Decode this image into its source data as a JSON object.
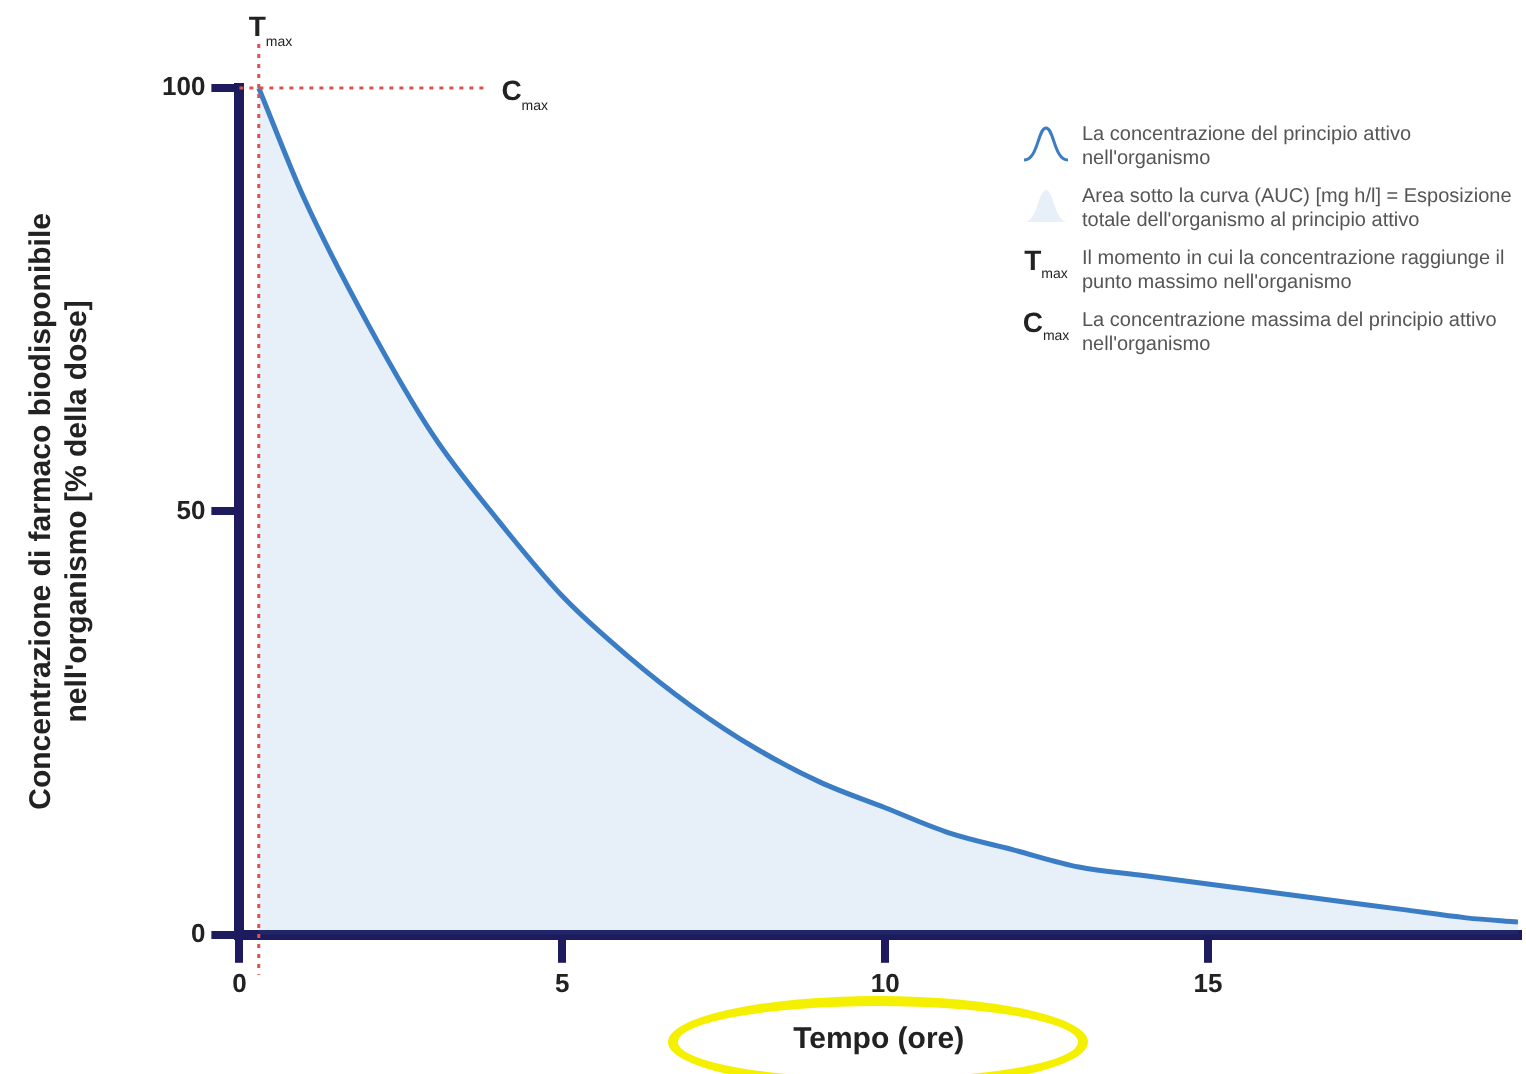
{
  "chart_data": {
    "type": "area",
    "xlabel": "Tempo (ore)",
    "ylabel": "Concentrazione di farmaco biodisponibile nell'organismo [% della dose]",
    "x": [
      0.3,
      1,
      2,
      3,
      4,
      5,
      6,
      7,
      8,
      9,
      10,
      11,
      12,
      13,
      14,
      15,
      16,
      17,
      18,
      19,
      19.8
    ],
    "series": [
      {
        "name": "La concentrazione del principio attivo nell'organismo",
        "color": "#3b7dc4",
        "values": [
          100,
          87,
          72,
          59,
          49,
          40,
          33,
          27,
          22,
          18,
          15,
          12,
          10,
          8,
          7,
          6,
          5,
          4,
          3,
          2,
          1.5
        ]
      }
    ],
    "xlim": [
      0,
      19.8
    ],
    "xticks": [
      0,
      5,
      10,
      15
    ],
    "ylim": [
      0,
      100
    ],
    "yticks": [
      0,
      50,
      100
    ],
    "grid": false,
    "legend": "top right",
    "marker": "none",
    "line_style": "solid",
    "ref_lines": [
      {
        "axis": "x",
        "value": 0.3,
        "label": "T$_{max}$",
        "color": "#d9534f",
        "line_style": "dotted"
      },
      {
        "axis": "y",
        "value": 100,
        "label": "C$_{max}$",
        "color": "#d9534f",
        "line_style": "dotted"
      }
    ],
    "annotations": [
      "Area sotto la curva (AUC) [mg h/l] = Esposizione totale dell'organismo al principio attivo",
      "Il momento in cui la concentrazione raggiunge il punto massimo nell'organismo",
      "La concentrazione massima del principio attivo nell'organismo"
    ]
  }
}
